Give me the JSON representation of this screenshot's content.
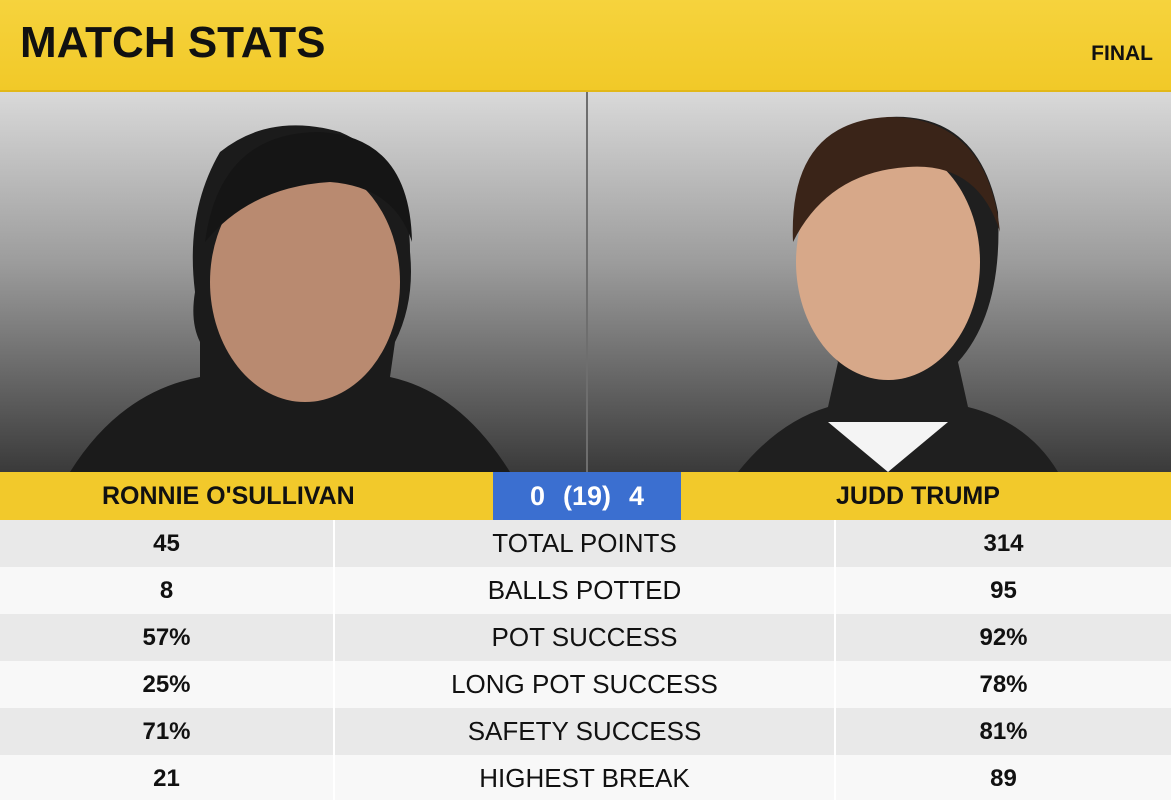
{
  "header": {
    "title": "MATCH STATS",
    "status": "FINAL"
  },
  "players": {
    "left": {
      "name": "RONNIE O'SULLIVAN"
    },
    "right": {
      "name": "JUDD TRUMP"
    }
  },
  "score": {
    "left": "0",
    "frames": "(19)",
    "right": "4"
  },
  "stats": [
    {
      "label": "TOTAL POINTS",
      "left": "45",
      "right": "314"
    },
    {
      "label": "BALLS POTTED",
      "left": "8",
      "right": "95"
    },
    {
      "label": "POT SUCCESS",
      "left": "57%",
      "right": "92%"
    },
    {
      "label": "LONG POT SUCCESS",
      "left": "25%",
      "right": "78%"
    },
    {
      "label": "SAFETY SUCCESS",
      "left": "71%",
      "right": "81%"
    },
    {
      "label": "HIGHEST BREAK",
      "left": "21",
      "right": "89"
    }
  ],
  "colors": {
    "accent_yellow": "#f2c92b",
    "score_blue": "#3b6fd0"
  }
}
